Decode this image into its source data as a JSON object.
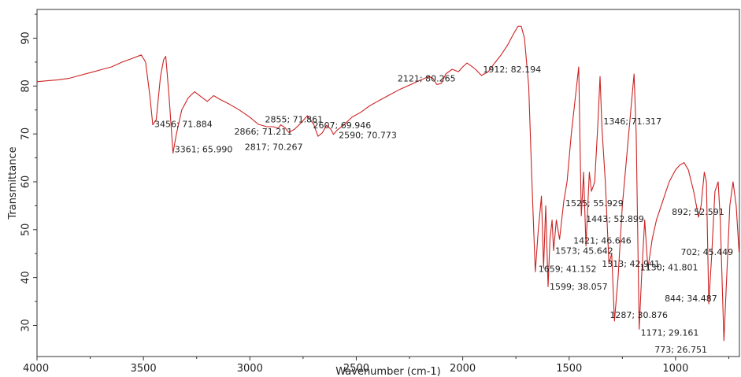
{
  "chart_data": {
    "type": "line",
    "title": "",
    "xlabel": "Wavenumber (cm-1)",
    "ylabel": "Transmittance",
    "xlim": [
      4000,
      700
    ],
    "ylim": [
      23.5,
      96
    ],
    "x_reversed": true,
    "grid": false,
    "legend": "none",
    "xticks": [
      4000,
      3500,
      3000,
      2500,
      2000,
      1500,
      1000
    ],
    "yticks": [
      30,
      40,
      50,
      60,
      70,
      80,
      90
    ],
    "series": [
      {
        "name": "",
        "color": "#cc2222",
        "points": [
          [
            4000,
            80.9
          ],
          [
            3950,
            81.1
          ],
          [
            3900,
            81.3
          ],
          [
            3850,
            81.6
          ],
          [
            3800,
            82.2
          ],
          [
            3750,
            82.8
          ],
          [
            3700,
            83.4
          ],
          [
            3650,
            84.0
          ],
          [
            3600,
            85.0
          ],
          [
            3550,
            85.8
          ],
          [
            3510,
            86.5
          ],
          [
            3490,
            85.0
          ],
          [
            3470,
            78.0
          ],
          [
            3456,
            71.9
          ],
          [
            3440,
            73.0
          ],
          [
            3420,
            82.0
          ],
          [
            3405,
            85.5
          ],
          [
            3395,
            86.2
          ],
          [
            3380,
            78.0
          ],
          [
            3361,
            66.0
          ],
          [
            3345,
            70.0
          ],
          [
            3320,
            75.0
          ],
          [
            3290,
            77.5
          ],
          [
            3260,
            78.8
          ],
          [
            3230,
            77.8
          ],
          [
            3200,
            76.8
          ],
          [
            3170,
            78.0
          ],
          [
            3140,
            77.2
          ],
          [
            3100,
            76.3
          ],
          [
            3050,
            75.0
          ],
          [
            3000,
            73.5
          ],
          [
            2960,
            72.0
          ],
          [
            2920,
            71.5
          ],
          [
            2890,
            71.5
          ],
          [
            2866,
            71.2
          ],
          [
            2855,
            71.9
          ],
          [
            2835,
            71.3
          ],
          [
            2817,
            70.3
          ],
          [
            2790,
            71.0
          ],
          [
            2760,
            72.3
          ],
          [
            2730,
            73.8
          ],
          [
            2700,
            72.0
          ],
          [
            2680,
            69.5
          ],
          [
            2660,
            70.2
          ],
          [
            2640,
            71.8
          ],
          [
            2620,
            71.0
          ],
          [
            2607,
            69.9
          ],
          [
            2590,
            70.8
          ],
          [
            2560,
            71.8
          ],
          [
            2520,
            73.5
          ],
          [
            2480,
            74.5
          ],
          [
            2440,
            75.8
          ],
          [
            2400,
            76.8
          ],
          [
            2350,
            78.0
          ],
          [
            2300,
            79.2
          ],
          [
            2250,
            80.2
          ],
          [
            2200,
            81.2
          ],
          [
            2160,
            82.0
          ],
          [
            2140,
            81.6
          ],
          [
            2121,
            80.3
          ],
          [
            2100,
            80.6
          ],
          [
            2080,
            82.5
          ],
          [
            2050,
            83.5
          ],
          [
            2020,
            83.0
          ],
          [
            2000,
            84.0
          ],
          [
            1980,
            84.8
          ],
          [
            1960,
            84.2
          ],
          [
            1940,
            83.5
          ],
          [
            1912,
            82.2
          ],
          [
            1880,
            83.0
          ],
          [
            1850,
            84.8
          ],
          [
            1820,
            86.5
          ],
          [
            1790,
            88.5
          ],
          [
            1760,
            91.0
          ],
          [
            1740,
            92.5
          ],
          [
            1725,
            92.5
          ],
          [
            1710,
            90.0
          ],
          [
            1690,
            80.0
          ],
          [
            1675,
            60.0
          ],
          [
            1665,
            48.0
          ],
          [
            1659,
            41.2
          ],
          [
            1645,
            50.0
          ],
          [
            1630,
            57.0
          ],
          [
            1620,
            42.0
          ],
          [
            1610,
            55.0
          ],
          [
            1599,
            38.1
          ],
          [
            1590,
            48.0
          ],
          [
            1580,
            52.0
          ],
          [
            1573,
            45.6
          ],
          [
            1560,
            52.0
          ],
          [
            1545,
            48.0
          ],
          [
            1525,
            56.0
          ],
          [
            1510,
            60.0
          ],
          [
            1490,
            70.0
          ],
          [
            1470,
            78.0
          ],
          [
            1455,
            84.0
          ],
          [
            1443,
            52.9
          ],
          [
            1432,
            62.0
          ],
          [
            1421,
            46.6
          ],
          [
            1405,
            62.0
          ],
          [
            1395,
            58.0
          ],
          [
            1380,
            60.0
          ],
          [
            1365,
            72.0
          ],
          [
            1355,
            82.0
          ],
          [
            1346,
            71.3
          ],
          [
            1330,
            60.0
          ],
          [
            1313,
            42.9
          ],
          [
            1300,
            45.0
          ],
          [
            1287,
            30.9
          ],
          [
            1270,
            40.0
          ],
          [
            1250,
            55.0
          ],
          [
            1230,
            65.0
          ],
          [
            1210,
            75.0
          ],
          [
            1195,
            82.5
          ],
          [
            1185,
            70.0
          ],
          [
            1171,
            29.2
          ],
          [
            1160,
            40.0
          ],
          [
            1145,
            52.0
          ],
          [
            1130,
            41.8
          ],
          [
            1110,
            48.0
          ],
          [
            1090,
            52.0
          ],
          [
            1060,
            56.0
          ],
          [
            1030,
            60.0
          ],
          [
            1000,
            62.5
          ],
          [
            980,
            63.5
          ],
          [
            960,
            64.0
          ],
          [
            940,
            62.5
          ],
          [
            915,
            58.0
          ],
          [
            892,
            52.6
          ],
          [
            880,
            55.0
          ],
          [
            865,
            62.0
          ],
          [
            855,
            60.0
          ],
          [
            844,
            34.5
          ],
          [
            830,
            45.0
          ],
          [
            815,
            58.0
          ],
          [
            800,
            60.0
          ],
          [
            790,
            52.0
          ],
          [
            773,
            26.8
          ],
          [
            760,
            40.0
          ],
          [
            745,
            55.0
          ],
          [
            730,
            60.0
          ],
          [
            715,
            55.0
          ],
          [
            702,
            45.4
          ],
          [
            700,
            46.0
          ]
        ]
      }
    ],
    "annotations": [
      {
        "text": "3456; 71.884",
        "x": 3456,
        "y": 71.9
      },
      {
        "text": "3361; 65.990",
        "x": 3361,
        "y": 66.0
      },
      {
        "text": "2855; 71.861",
        "x": 2855,
        "y": 71.9
      },
      {
        "text": "2866; 71.211",
        "x": 2866,
        "y": 71.2
      },
      {
        "text": "2817; 70.267",
        "x": 2817,
        "y": 70.3
      },
      {
        "text": "2607; 69.946",
        "x": 2607,
        "y": 69.9
      },
      {
        "text": "2590; 70.773",
        "x": 2590,
        "y": 70.8
      },
      {
        "text": "2121; 80.265",
        "x": 2121,
        "y": 80.3
      },
      {
        "text": "1912; 82.194",
        "x": 1912,
        "y": 82.2
      },
      {
        "text": "1346; 71.317",
        "x": 1346,
        "y": 71.3
      },
      {
        "text": "1525; 55.929",
        "x": 1525,
        "y": 55.9
      },
      {
        "text": "1443; 52.899",
        "x": 1443,
        "y": 52.9
      },
      {
        "text": "892; 52.591",
        "x": 892,
        "y": 52.6
      },
      {
        "text": "1421; 46.646",
        "x": 1421,
        "y": 46.6
      },
      {
        "text": "1573; 45.642",
        "x": 1573,
        "y": 45.6
      },
      {
        "text": "702; 45.449",
        "x": 702,
        "y": 45.4
      },
      {
        "text": "1659; 41.152",
        "x": 1659,
        "y": 41.2
      },
      {
        "text": "1130; 41.801",
        "x": 1130,
        "y": 41.8
      },
      {
        "text": "1599; 38.057",
        "x": 1599,
        "y": 38.1
      },
      {
        "text": "1313; 42.941",
        "x": 1313,
        "y": 42.9
      },
      {
        "text": "844; 34.487",
        "x": 844,
        "y": 34.5
      },
      {
        "text": "1287; 30.876",
        "x": 1287,
        "y": 30.9
      },
      {
        "text": "1171; 29.161",
        "x": 1171,
        "y": 29.2
      },
      {
        "text": "773; 26.751",
        "x": 773,
        "y": 26.8
      }
    ]
  }
}
